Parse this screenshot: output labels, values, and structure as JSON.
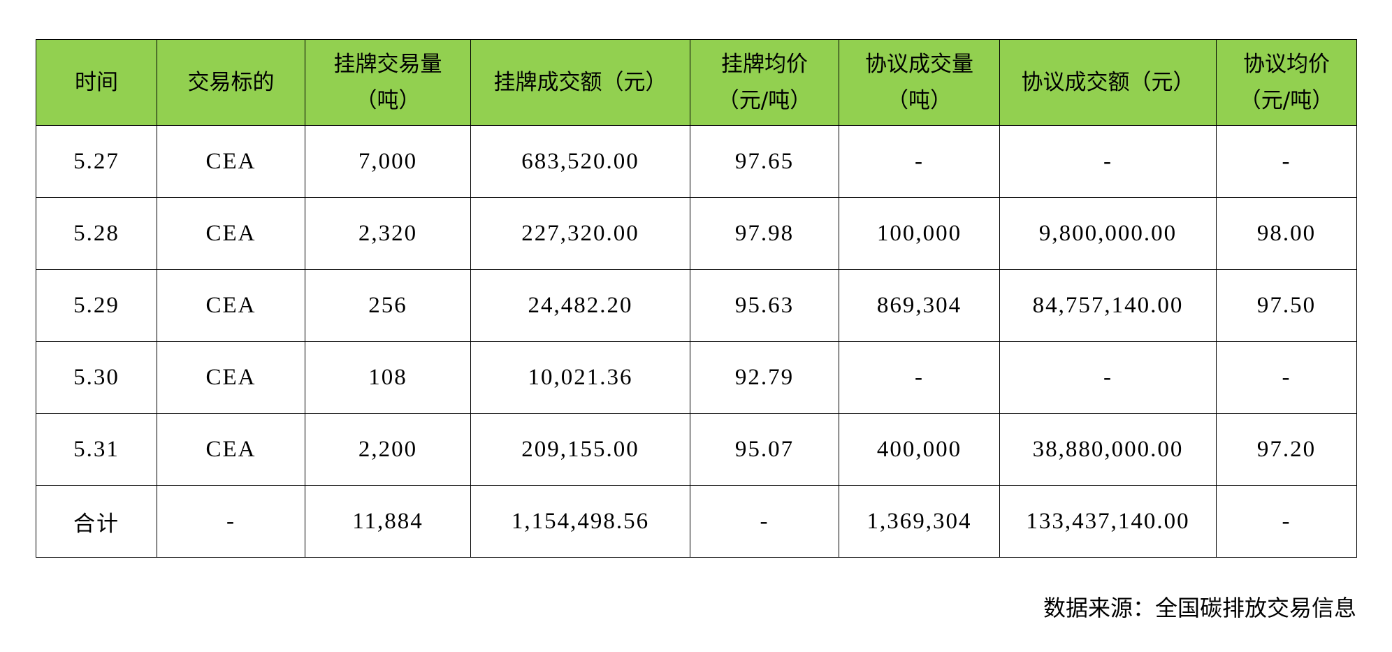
{
  "table": {
    "header_color": "#92D050",
    "headers": [
      "时间",
      "交易标的",
      "挂牌交易量\n（吨）",
      "挂牌成交额（元）",
      "挂牌均价\n（元/吨）",
      "协议成交量\n（吨）",
      "协议成交额（元）",
      "协议均价\n（元/吨）"
    ],
    "rows": [
      [
        "5.27",
        "CEA",
        "7,000",
        "683,520.00",
        "97.65",
        "-",
        "-",
        "-"
      ],
      [
        "5.28",
        "CEA",
        "2,320",
        "227,320.00",
        "97.98",
        "100,000",
        "9,800,000.00",
        "98.00"
      ],
      [
        "5.29",
        "CEA",
        "256",
        "24,482.20",
        "95.63",
        "869,304",
        "84,757,140.00",
        "97.50"
      ],
      [
        "5.30",
        "CEA",
        "108",
        "10,021.36",
        "92.79",
        "-",
        "-",
        "-"
      ],
      [
        "5.31",
        "CEA",
        "2,200",
        "209,155.00",
        "95.07",
        "400,000",
        "38,880,000.00",
        "97.20"
      ],
      [
        "合计",
        "-",
        "11,884",
        "1,154,498.56",
        "-",
        "1,369,304",
        "133,437,140.00",
        "-"
      ]
    ]
  },
  "source_note": "数据来源：全国碳排放交易信息"
}
